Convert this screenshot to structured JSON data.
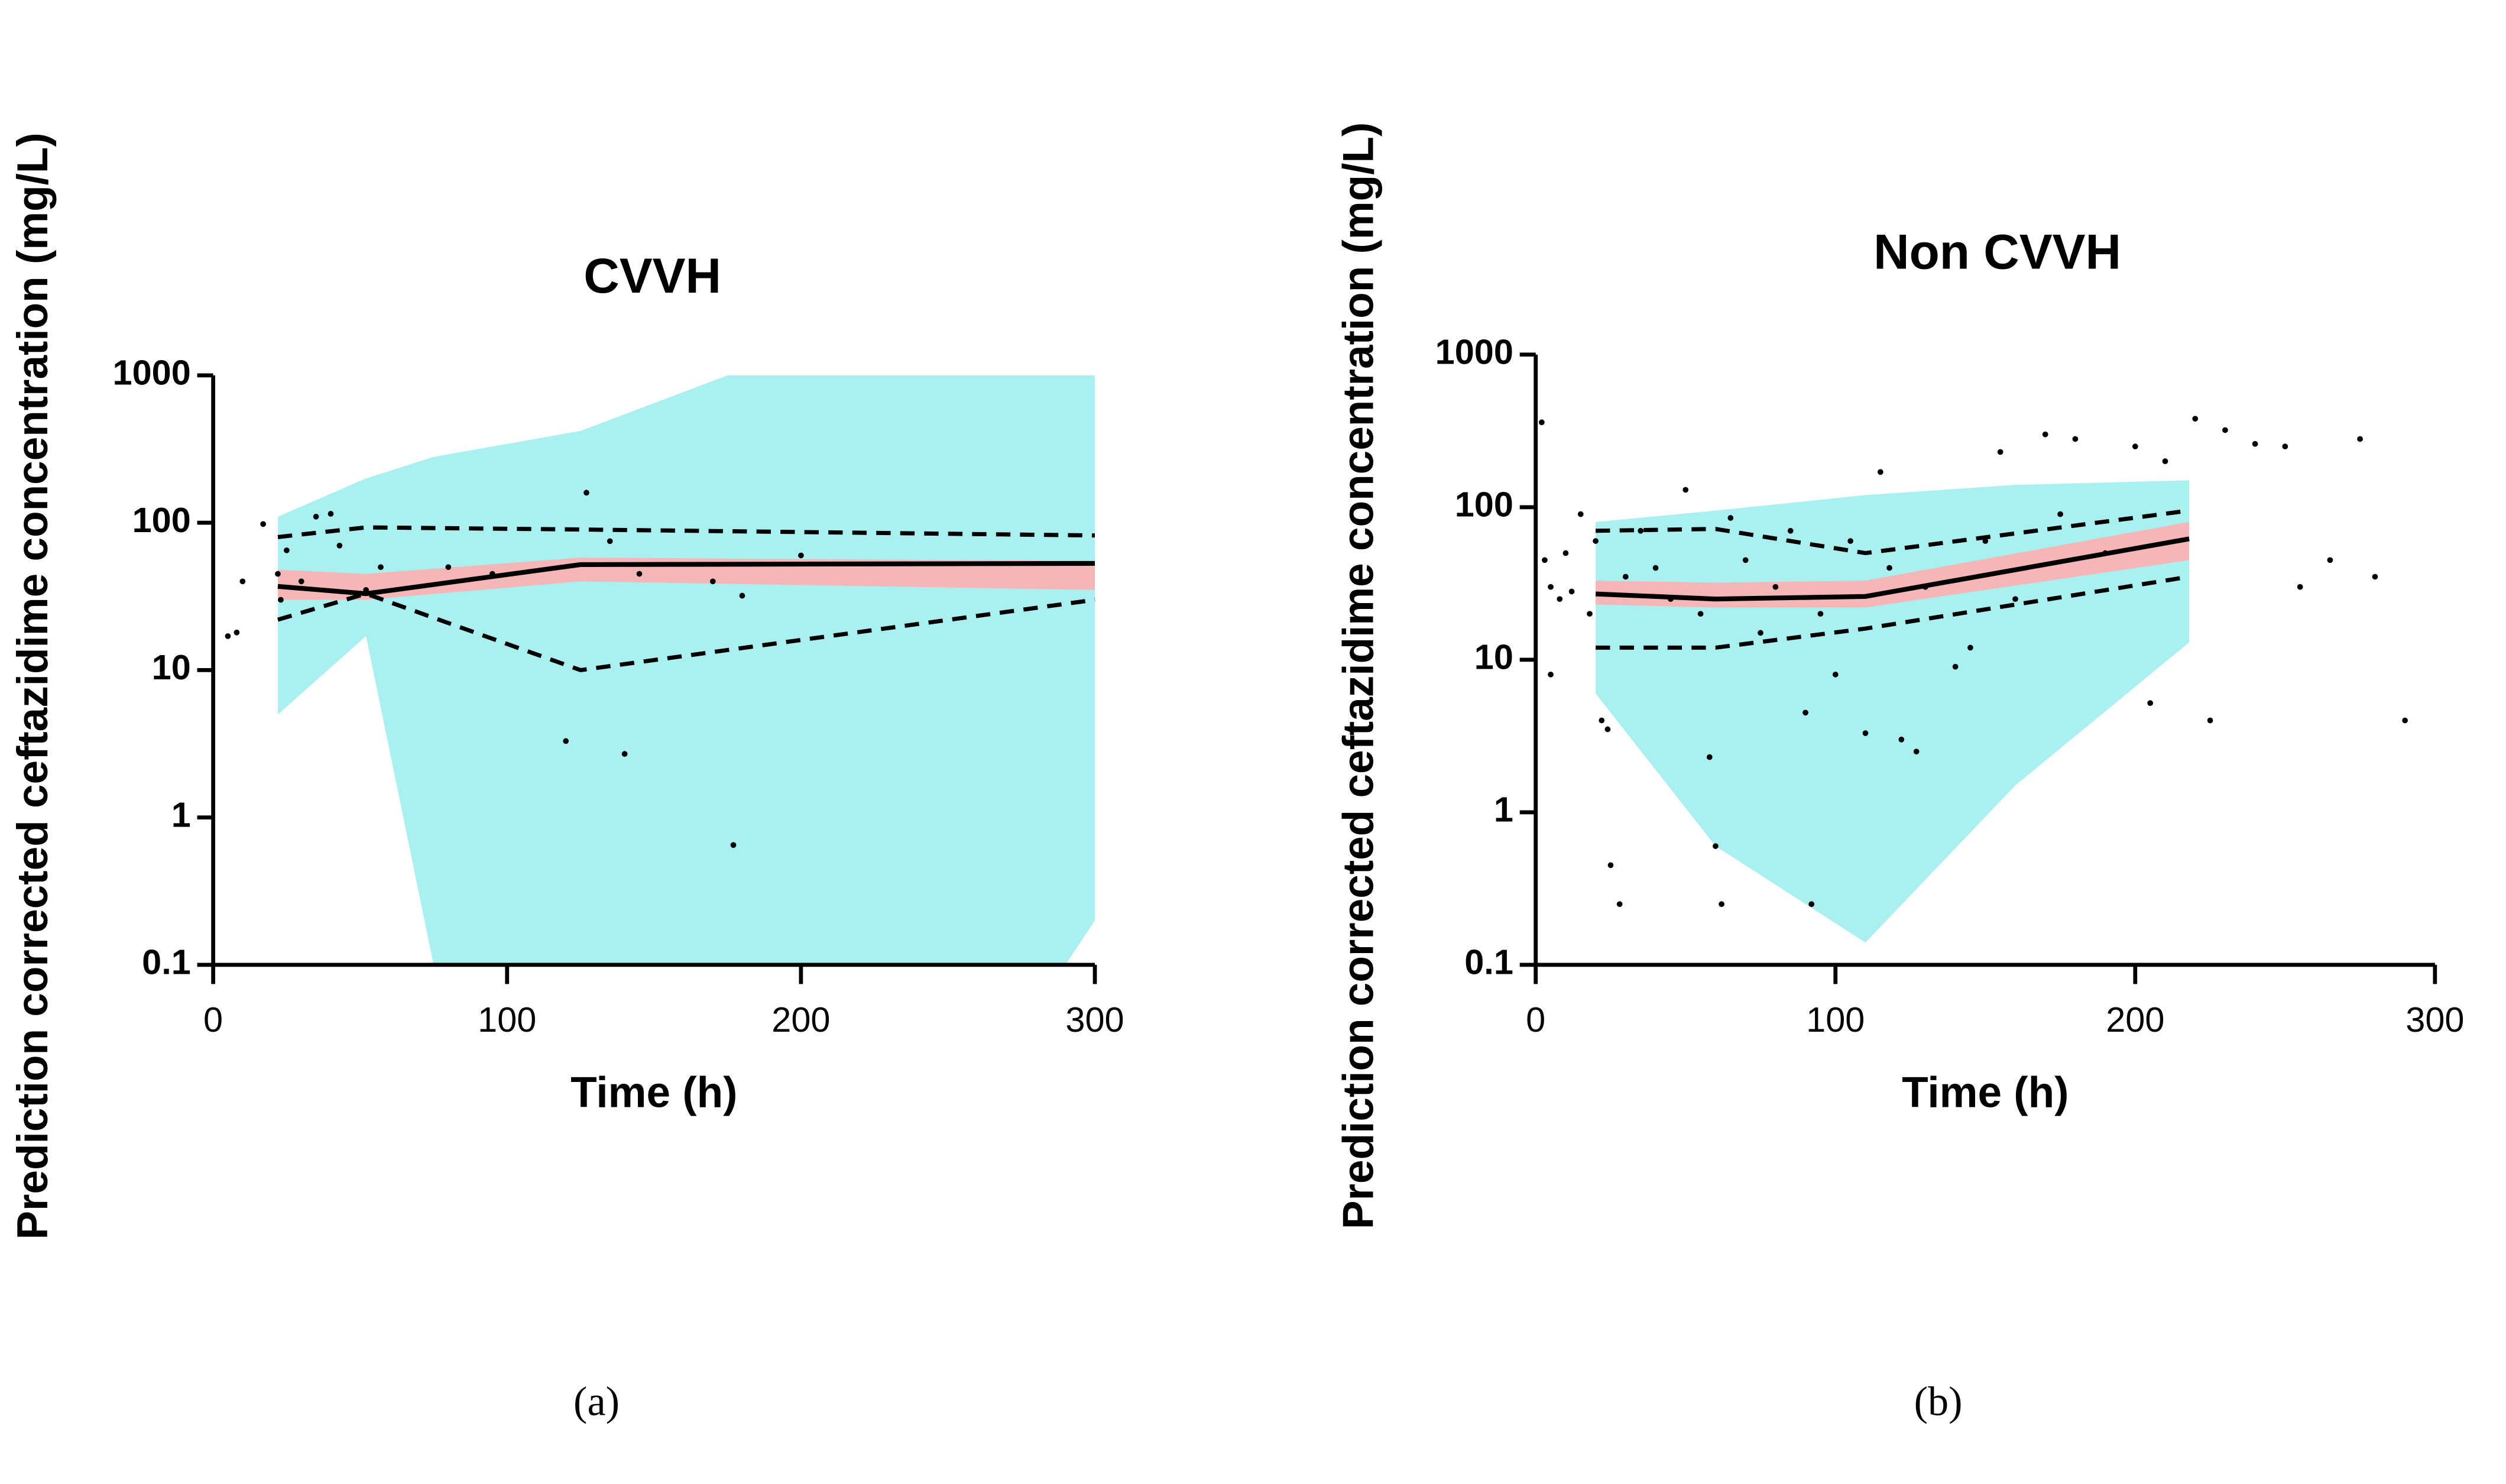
{
  "chart_data": [
    {
      "type": "scatter",
      "title": "CVVH",
      "xlabel": "Time (h)",
      "ylabel": "Prediction corrected ceftazidime concentration (mg/L)",
      "caption": "(a)",
      "log_y": true,
      "xlim": [
        0,
        300
      ],
      "ylim": [
        0.1,
        1000
      ],
      "xticks": [
        0,
        100,
        200,
        300
      ],
      "yticks": [
        0.1,
        1,
        10,
        100,
        1000
      ],
      "pi_band": {
        "color": "#aaf0f0",
        "x": [
          22,
          52,
          75,
          125,
          175,
          290,
          300
        ],
        "lower": [
          5,
          17,
          0.1,
          0.1,
          0.1,
          0.1,
          0.2
        ],
        "upper": [
          110,
          200,
          280,
          420,
          1000,
          1000,
          1000
        ]
      },
      "median_band": {
        "color": "#f4b6b6",
        "x": [
          22,
          52,
          125,
          300
        ],
        "lower": [
          30,
          30,
          40,
          35
        ],
        "upper": [
          48,
          45,
          58,
          55
        ]
      },
      "median": {
        "color": "#000000",
        "x": [
          22,
          52,
          125,
          300
        ],
        "y": [
          37,
          33,
          52,
          53
        ]
      },
      "p95": {
        "color": "#000000",
        "x": [
          22,
          52,
          125,
          300
        ],
        "y": [
          80,
          93,
          90,
          82
        ]
      },
      "p5": {
        "color": "#000000",
        "x": [
          22,
          52,
          125,
          300
        ],
        "y": [
          22,
          33,
          10,
          30
        ]
      },
      "points": {
        "color": "#000000",
        "x": [
          5,
          8,
          10,
          17,
          22,
          23,
          25,
          35,
          40,
          43,
          30,
          57,
          80,
          95,
          120,
          127,
          135,
          140,
          145,
          170,
          177,
          180,
          200,
          52
        ],
        "y": [
          17,
          18,
          40,
          98,
          45,
          30,
          65,
          110,
          115,
          70,
          40,
          50,
          50,
          45,
          3.3,
          160,
          75,
          2.7,
          45,
          40,
          0.65,
          32,
          60,
          35
        ]
      }
    },
    {
      "type": "scatter",
      "title": "Non CVVH",
      "xlabel": "Time (h)",
      "ylabel": "Prediction corrected ceftazidime concentration (mg/L)",
      "caption": "(b)",
      "log_y": true,
      "xlim": [
        0,
        300
      ],
      "ylim": [
        0.1,
        1000
      ],
      "xticks": [
        0,
        100,
        200,
        300
      ],
      "yticks": [
        0.1,
        1,
        10,
        100,
        1000
      ],
      "pi_band": {
        "color": "#aaf0f0",
        "x": [
          20,
          60,
          110,
          160,
          218
        ],
        "lower": [
          6,
          0.6,
          0.14,
          1.5,
          13
        ],
        "upper": [
          80,
          95,
          120,
          140,
          150
        ]
      },
      "median_band": {
        "color": "#f4b6b6",
        "x": [
          20,
          60,
          110,
          218
        ],
        "lower": [
          23,
          22,
          22,
          45
        ],
        "upper": [
          33,
          32,
          33,
          80
        ]
      },
      "median": {
        "color": "#000000",
        "x": [
          20,
          60,
          110,
          218
        ],
        "y": [
          27,
          25,
          26,
          62
        ]
      },
      "p95": {
        "color": "#000000",
        "x": [
          20,
          60,
          110,
          218
        ],
        "y": [
          70,
          72,
          50,
          95
        ]
      },
      "p5": {
        "color": "#000000",
        "x": [
          20,
          60,
          110,
          218
        ],
        "y": [
          12,
          12,
          16,
          35
        ]
      },
      "points": {
        "color": "#000000",
        "x": [
          2,
          3,
          5,
          5,
          8,
          10,
          12,
          15,
          18,
          20,
          22,
          24,
          25,
          28,
          30,
          35,
          40,
          45,
          50,
          55,
          58,
          60,
          62,
          65,
          70,
          75,
          80,
          85,
          90,
          92,
          95,
          100,
          105,
          110,
          115,
          118,
          122,
          127,
          130,
          140,
          145,
          150,
          155,
          160,
          170,
          175,
          180,
          190,
          200,
          205,
          210,
          220,
          225,
          230,
          240,
          250,
          255,
          265,
          275,
          280,
          290
        ],
        "y": [
          360,
          45,
          30,
          8,
          25,
          50,
          28,
          90,
          20,
          60,
          4,
          3.5,
          0.45,
          0.25,
          35,
          70,
          40,
          25,
          130,
          20,
          2.3,
          0.6,
          0.25,
          85,
          45,
          15,
          30,
          70,
          4.5,
          0.25,
          20,
          8,
          60,
          3.3,
          170,
          40,
          3,
          2.5,
          30,
          9,
          12,
          60,
          230,
          25,
          300,
          90,
          280,
          50,
          250,
          5.2,
          200,
          380,
          4,
          320,
          260,
          250,
          30,
          45,
          280,
          35,
          4
        ]
      }
    }
  ]
}
